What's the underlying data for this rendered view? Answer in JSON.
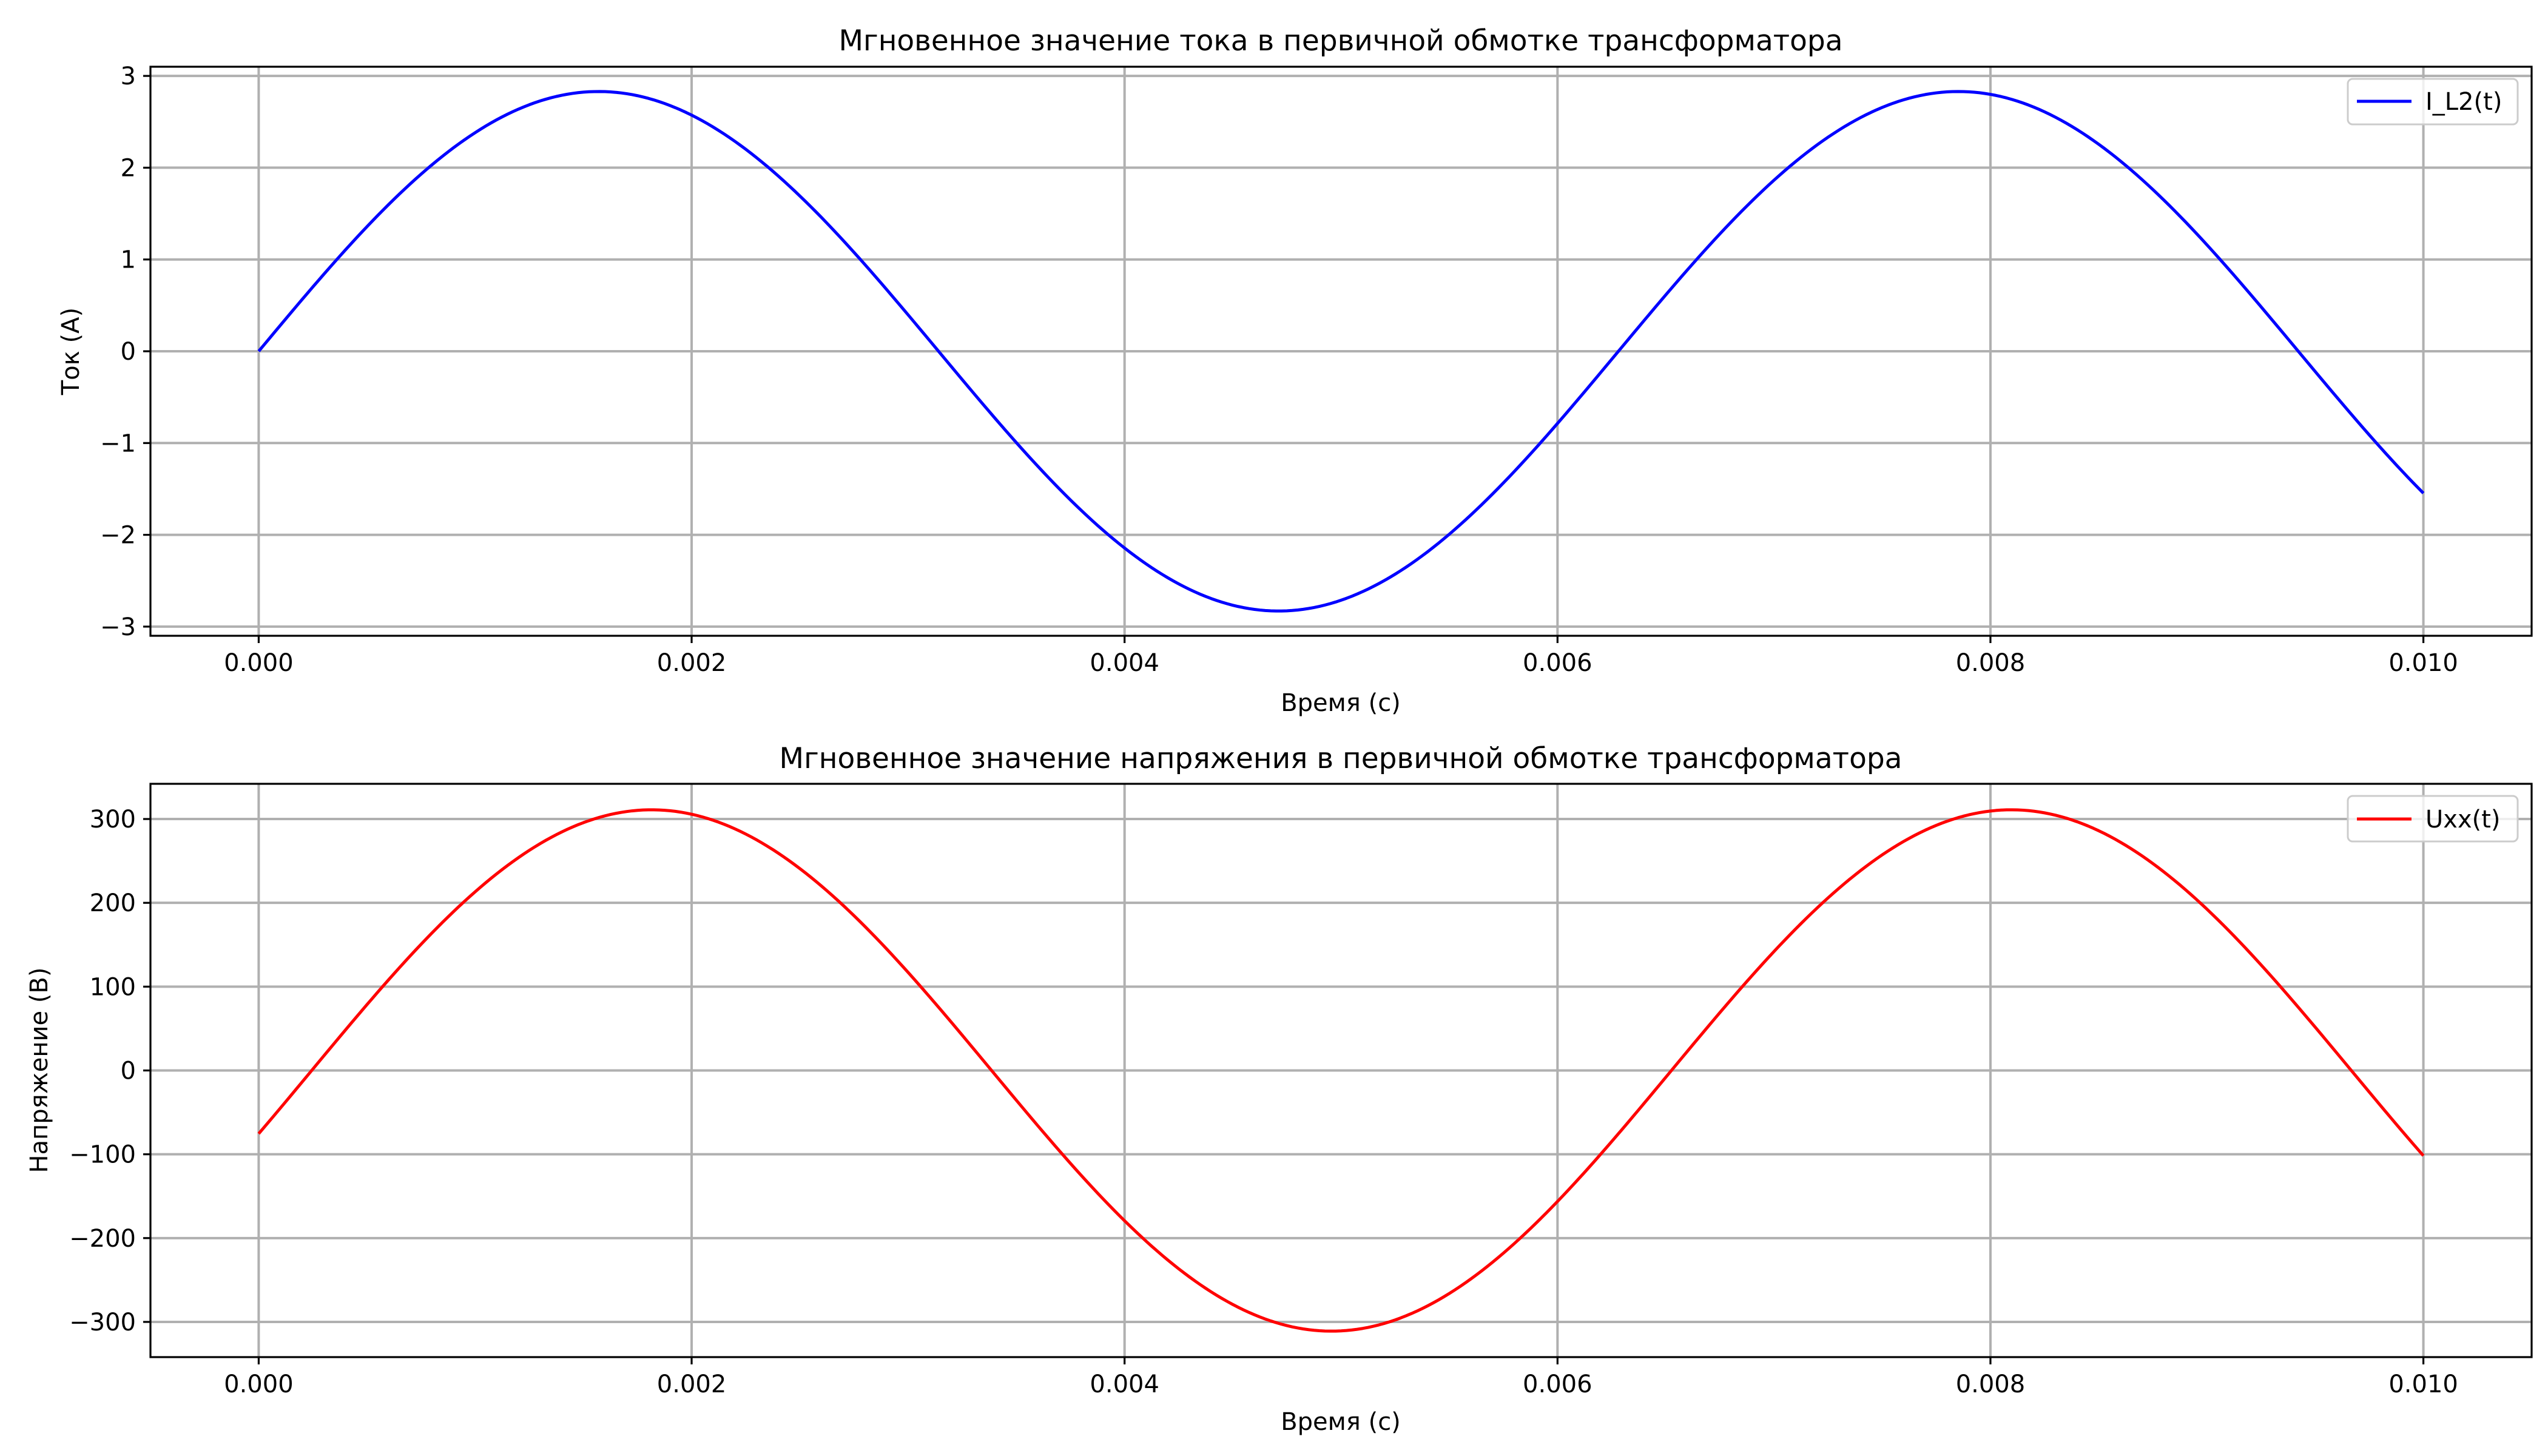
{
  "chart_data": [
    {
      "type": "line",
      "title": "Мгновенное значение тока в первичной обмотке трансформатора",
      "xlabel": "Время (с)",
      "ylabel": "Ток (А)",
      "xlim": [
        -0.0005,
        0.0105
      ],
      "ylim": [
        -3.1,
        3.1
      ],
      "xticks": [
        0.0,
        0.002,
        0.004,
        0.006,
        0.008,
        0.01
      ],
      "xtick_labels": [
        "0.000",
        "0.002",
        "0.004",
        "0.006",
        "0.008",
        "0.010"
      ],
      "yticks": [
        -3,
        -2,
        -1,
        0,
        1,
        2,
        3
      ],
      "ytick_labels": [
        "−3",
        "−2",
        "−1",
        "0",
        "1",
        "2",
        "3"
      ],
      "grid": true,
      "legend_position": "top-right",
      "series": [
        {
          "name": "I_L2(t)",
          "color": "#0000ff",
          "amplitude": 2.83,
          "frequency_hz": 159.2,
          "phase_rad": 0.0,
          "x_start": 0.0,
          "x_end": 0.01,
          "samples": 400
        }
      ]
    },
    {
      "type": "line",
      "title": "Мгновенное значение напряжения в первичной обмотке трансформатора",
      "xlabel": "Время (с)",
      "ylabel": "Напряжение (В)",
      "xlim": [
        -0.0005,
        0.0105
      ],
      "ylim": [
        -342,
        342
      ],
      "xticks": [
        0.0,
        0.002,
        0.004,
        0.006,
        0.008,
        0.01
      ],
      "xtick_labels": [
        "0.000",
        "0.002",
        "0.004",
        "0.006",
        "0.008",
        "0.010"
      ],
      "yticks": [
        -300,
        -200,
        -100,
        0,
        100,
        200,
        300
      ],
      "ytick_labels": [
        "−300",
        "−200",
        "−100",
        "0",
        "100",
        "200",
        "300"
      ],
      "grid": true,
      "legend_position": "top-right",
      "series": [
        {
          "name": "Uxx(t)",
          "color": "#ff0000",
          "amplitude": 311,
          "frequency_hz": 159.2,
          "phase_rad": -0.245,
          "x_start": 0.0,
          "x_end": 0.01,
          "samples": 400
        }
      ]
    }
  ]
}
